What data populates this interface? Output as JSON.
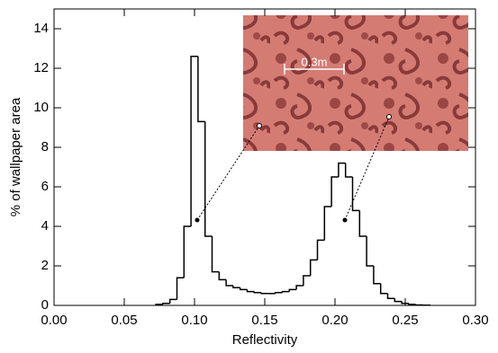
{
  "chart_data": {
    "type": "histogram",
    "xlabel": "Reflectivity",
    "ylabel": "% of wallpaper area",
    "bins": [
      0.0725,
      0.0775,
      0.0825,
      0.0875,
      0.0925,
      0.0975,
      0.1025,
      0.1075,
      0.1125,
      0.1175,
      0.1225,
      0.1275,
      0.1325,
      0.1375,
      0.1425,
      0.1475,
      0.1525,
      0.1575,
      0.1625,
      0.1675,
      0.1725,
      0.1775,
      0.1825,
      0.1875,
      0.1925,
      0.1975,
      0.2025,
      0.2075,
      0.2125,
      0.2175,
      0.2225,
      0.2275,
      0.2325,
      0.2375,
      0.2425,
      0.2475,
      0.2525,
      0.2575,
      0.2625,
      0.2675
    ],
    "values": [
      0.05,
      0.1,
      0.3,
      1.4,
      4.0,
      12.6,
      9.3,
      3.5,
      1.7,
      1.3,
      1.0,
      0.9,
      0.8,
      0.7,
      0.65,
      0.6,
      0.6,
      0.65,
      0.7,
      0.8,
      1.0,
      1.5,
      2.3,
      3.3,
      5.0,
      6.5,
      7.2,
      6.5,
      4.8,
      3.5,
      2.0,
      1.1,
      0.6,
      0.35,
      0.2,
      0.1,
      0.05,
      0.02,
      0.01
    ],
    "color": "#000000",
    "xlim": [
      0,
      0.3
    ],
    "xticks": [
      {
        "value": 0,
        "label": "0.00"
      },
      {
        "value": 0.05,
        "label": "0.05"
      },
      {
        "value": 0.1,
        "label": "0.10"
      },
      {
        "value": 0.15,
        "label": "0.15"
      },
      {
        "value": 0.2,
        "label": "0.20"
      },
      {
        "value": 0.25,
        "label": "0.25"
      },
      {
        "value": 0.3,
        "label": "0.30"
      }
    ],
    "ylim": [
      0,
      15
    ],
    "yticks": [
      0,
      2,
      4,
      6,
      8,
      10,
      12,
      14
    ],
    "inset_scale_label": "0.3m"
  }
}
